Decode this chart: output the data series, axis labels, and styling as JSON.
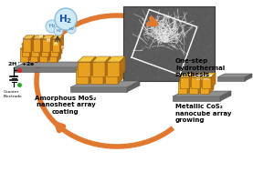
{
  "bg_color": "#ffffff",
  "arrow_color": "#E07830",
  "arrow_lw": 4.0,
  "cube_face": "#E8A020",
  "cube_top": "#F0C855",
  "cube_right": "#B87010",
  "cube_edge": "#A06010",
  "plat_top": "#909090",
  "plat_front": "#787878",
  "plat_right": "#606060",
  "plat_edge": "#505050",
  "h2_bubble_fill": "#D0EAF5",
  "h2_bubble_edge": "#88BDD8",
  "sem_bg": "#585858",
  "labels": {
    "amorphous": "Amorphous MoS₂\nnanosheet array\ncoating",
    "onestep": "One-step\nhydrothermal\nsynthesis",
    "metallic": "Metallic CoS₂\nnanocube array\ngrowing"
  },
  "figsize": [
    2.77,
    1.89
  ],
  "dpi": 100
}
